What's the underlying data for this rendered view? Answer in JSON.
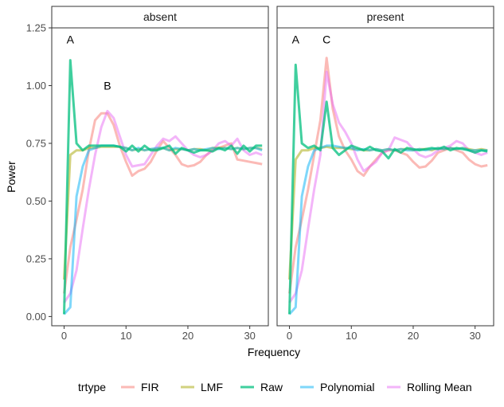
{
  "chart_data": {
    "type": "line",
    "xlabel": "Frequency",
    "ylabel": "Power",
    "xlim": [
      -2,
      33
    ],
    "ylim": [
      -0.04,
      1.25
    ],
    "xticks": [
      0,
      10,
      20,
      30
    ],
    "yticks": [
      0.0,
      0.25,
      0.5,
      0.75,
      1.0,
      1.25
    ],
    "ytick_labels": [
      "0.00",
      "0.25",
      "0.50",
      "0.75",
      "1.00",
      "1.25"
    ],
    "legend": {
      "title": "trtype",
      "position": "bottom",
      "entries": [
        "FIR",
        "LMF",
        "Raw",
        "Polynomial",
        "Rolling Mean"
      ]
    },
    "colors": {
      "FIR": "#F8766D",
      "LMF": "#A3A500",
      "Raw": "#00BF7D",
      "Polynomial": "#00B0F6",
      "Rolling Mean": "#E76BF3"
    },
    "panels": [
      {
        "label": "absent",
        "annotations": [
          {
            "text": "A",
            "x": 1,
            "y": 1.2
          },
          {
            "text": "B",
            "x": 7,
            "y": 1.0
          }
        ],
        "series": [
          {
            "name": "FIR",
            "x": [
              0,
              1,
              2,
              3,
              4,
              5,
              6,
              7,
              8,
              9,
              10,
              11,
              12,
              13,
              14,
              15,
              16,
              17,
              18,
              19,
              20,
              21,
              22,
              23,
              24,
              25,
              26,
              27,
              28,
              29,
              30,
              31,
              32
            ],
            "values": [
              0.1,
              0.3,
              0.42,
              0.55,
              0.72,
              0.85,
              0.88,
              0.88,
              0.83,
              0.74,
              0.67,
              0.61,
              0.63,
              0.64,
              0.67,
              0.72,
              0.76,
              0.73,
              0.7,
              0.66,
              0.65,
              0.655,
              0.67,
              0.7,
              0.72,
              0.73,
              0.74,
              0.75,
              0.68,
              0.675,
              0.67,
              0.665,
              0.66
            ]
          },
          {
            "name": "Rolling Mean",
            "x": [
              0,
              1,
              2,
              3,
              4,
              5,
              6,
              7,
              8,
              9,
              10,
              11,
              12,
              13,
              14,
              15,
              16,
              17,
              18,
              19,
              20,
              21,
              22,
              23,
              24,
              25,
              26,
              27,
              28,
              29,
              30,
              31,
              32
            ],
            "values": [
              0.06,
              0.1,
              0.2,
              0.38,
              0.55,
              0.7,
              0.82,
              0.89,
              0.86,
              0.78,
              0.7,
              0.65,
              0.655,
              0.66,
              0.7,
              0.74,
              0.77,
              0.76,
              0.78,
              0.75,
              0.72,
              0.7,
              0.69,
              0.7,
              0.72,
              0.75,
              0.76,
              0.74,
              0.77,
              0.72,
              0.7,
              0.71,
              0.7
            ]
          },
          {
            "name": "LMF",
            "x": [
              0,
              1,
              2,
              3,
              4,
              5,
              6,
              7,
              8,
              9,
              10,
              11,
              12,
              13,
              14,
              15,
              16,
              17,
              18,
              19,
              20,
              21,
              22,
              23,
              24,
              25,
              26,
              27,
              28,
              29,
              30,
              31,
              32
            ],
            "values": [
              0.16,
              0.7,
              0.72,
              0.72,
              0.73,
              0.73,
              0.735,
              0.735,
              0.735,
              0.735,
              0.73,
              0.72,
              0.725,
              0.72,
              0.725,
              0.725,
              0.73,
              0.72,
              0.725,
              0.725,
              0.72,
              0.725,
              0.725,
              0.72,
              0.73,
              0.73,
              0.73,
              0.725,
              0.73,
              0.725,
              0.73,
              0.73,
              0.725
            ]
          },
          {
            "name": "Polynomial",
            "x": [
              0,
              1,
              2,
              3,
              4,
              5,
              6,
              7,
              8,
              9,
              10,
              11,
              12,
              13,
              14,
              15,
              16,
              17,
              18,
              19,
              20,
              21,
              22,
              23,
              24,
              25,
              26,
              27,
              28,
              29,
              30,
              31,
              32
            ],
            "values": [
              0.01,
              0.04,
              0.52,
              0.65,
              0.72,
              0.73,
              0.74,
              0.74,
              0.74,
              0.735,
              0.73,
              0.72,
              0.73,
              0.72,
              0.725,
              0.73,
              0.73,
              0.72,
              0.73,
              0.725,
              0.72,
              0.725,
              0.72,
              0.725,
              0.73,
              0.725,
              0.73,
              0.725,
              0.73,
              0.725,
              0.73,
              0.73,
              0.72
            ]
          },
          {
            "name": "Raw",
            "x": [
              0,
              1,
              2,
              3,
              4,
              5,
              6,
              7,
              8,
              9,
              10,
              11,
              12,
              13,
              14,
              15,
              16,
              17,
              18,
              19,
              20,
              21,
              22,
              23,
              24,
              25,
              26,
              27,
              28,
              29,
              30,
              31,
              32
            ],
            "values": [
              0.01,
              1.11,
              0.75,
              0.72,
              0.74,
              0.74,
              0.74,
              0.74,
              0.74,
              0.735,
              0.715,
              0.74,
              0.715,
              0.74,
              0.72,
              0.72,
              0.73,
              0.74,
              0.705,
              0.73,
              0.72,
              0.71,
              0.72,
              0.72,
              0.715,
              0.73,
              0.72,
              0.74,
              0.705,
              0.74,
              0.715,
              0.74,
              0.74
            ]
          }
        ]
      },
      {
        "label": "present",
        "annotations": [
          {
            "text": "A",
            "x": 1,
            "y": 1.2
          },
          {
            "text": "C",
            "x": 6,
            "y": 1.2
          }
        ],
        "series": [
          {
            "name": "FIR",
            "x": [
              0,
              1,
              2,
              3,
              4,
              5,
              6,
              7,
              8,
              9,
              10,
              11,
              12,
              13,
              14,
              15,
              16,
              17,
              18,
              19,
              20,
              21,
              22,
              23,
              24,
              25,
              26,
              27,
              28,
              29,
              30,
              31,
              32
            ],
            "values": [
              0.1,
              0.3,
              0.42,
              0.55,
              0.7,
              0.85,
              1.12,
              0.9,
              0.78,
              0.72,
              0.68,
              0.63,
              0.61,
              0.65,
              0.68,
              0.71,
              0.72,
              0.72,
              0.71,
              0.7,
              0.67,
              0.645,
              0.65,
              0.675,
              0.71,
              0.72,
              0.73,
              0.72,
              0.71,
              0.68,
              0.66,
              0.65,
              0.655
            ]
          },
          {
            "name": "Rolling Mean",
            "x": [
              0,
              1,
              2,
              3,
              4,
              5,
              6,
              7,
              8,
              9,
              10,
              11,
              12,
              13,
              14,
              15,
              16,
              17,
              18,
              19,
              20,
              21,
              22,
              23,
              24,
              25,
              26,
              27,
              28,
              29,
              30,
              31,
              32
            ],
            "values": [
              0.06,
              0.1,
              0.2,
              0.38,
              0.55,
              0.7,
              1.06,
              0.92,
              0.84,
              0.8,
              0.75,
              0.68,
              0.63,
              0.65,
              0.67,
              0.71,
              0.72,
              0.775,
              0.765,
              0.755,
              0.725,
              0.7,
              0.69,
              0.7,
              0.72,
              0.73,
              0.74,
              0.76,
              0.75,
              0.72,
              0.71,
              0.7,
              0.71
            ]
          },
          {
            "name": "LMF",
            "x": [
              0,
              1,
              2,
              3,
              4,
              5,
              6,
              7,
              8,
              9,
              10,
              11,
              12,
              13,
              14,
              15,
              16,
              17,
              18,
              19,
              20,
              21,
              22,
              23,
              24,
              25,
              26,
              27,
              28,
              29,
              30,
              31,
              32
            ],
            "values": [
              0.16,
              0.68,
              0.72,
              0.72,
              0.73,
              0.73,
              0.735,
              0.73,
              0.73,
              0.73,
              0.725,
              0.725,
              0.72,
              0.72,
              0.725,
              0.72,
              0.725,
              0.72,
              0.725,
              0.725,
              0.72,
              0.725,
              0.725,
              0.72,
              0.73,
              0.725,
              0.73,
              0.725,
              0.73,
              0.725,
              0.72,
              0.725,
              0.72
            ]
          },
          {
            "name": "Polynomial",
            "x": [
              0,
              1,
              2,
              3,
              4,
              5,
              6,
              7,
              8,
              9,
              10,
              11,
              12,
              13,
              14,
              15,
              16,
              17,
              18,
              19,
              20,
              21,
              22,
              23,
              24,
              25,
              26,
              27,
              28,
              29,
              30,
              31,
              32
            ],
            "values": [
              0.01,
              0.04,
              0.52,
              0.65,
              0.72,
              0.73,
              0.74,
              0.74,
              0.735,
              0.73,
              0.73,
              0.72,
              0.725,
              0.72,
              0.725,
              0.72,
              0.725,
              0.72,
              0.725,
              0.72,
              0.72,
              0.725,
              0.72,
              0.725,
              0.73,
              0.725,
              0.73,
              0.725,
              0.73,
              0.72,
              0.72,
              0.72,
              0.72
            ]
          },
          {
            "name": "Raw",
            "x": [
              0,
              1,
              2,
              3,
              4,
              5,
              6,
              7,
              8,
              9,
              10,
              11,
              12,
              13,
              14,
              15,
              16,
              17,
              18,
              19,
              20,
              21,
              22,
              23,
              24,
              25,
              26,
              27,
              28,
              29,
              30,
              31,
              32
            ],
            "values": [
              0.01,
              1.09,
              0.75,
              0.73,
              0.74,
              0.72,
              0.93,
              0.73,
              0.7,
              0.72,
              0.74,
              0.73,
              0.72,
              0.735,
              0.72,
              0.715,
              0.685,
              0.725,
              0.71,
              0.73,
              0.725,
              0.72,
              0.725,
              0.73,
              0.725,
              0.735,
              0.72,
              0.73,
              0.725,
              0.72,
              0.71,
              0.72,
              0.715
            ]
          }
        ]
      }
    ]
  }
}
